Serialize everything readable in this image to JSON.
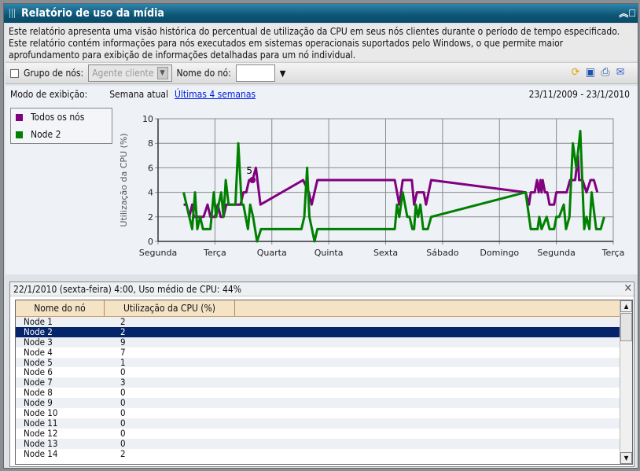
{
  "title": "Relatório de uso da mídia",
  "description": "Este relatório apresenta uma visão histórica do percentual de utilização da CPU em seus nós clientes durante o período de tempo especificado. Este relatório contém informações para nós executados em sistemas operacionais suportados pelo Windows, o que permite maior aprofundamento para exibição de informações detalhadas para um nó individual.",
  "toolbar": {
    "node_group_label": "Grupo de nós:",
    "node_group_value": "Agente cliente",
    "node_name_label": "Nome do nó:",
    "node_name_value": "",
    "icons": [
      "refresh-icon",
      "save-icon",
      "print-icon",
      "email-icon"
    ]
  },
  "mode": {
    "label": "Modo de exibição:",
    "current_week": "Semana atual",
    "last4": "Últimas 4 semanas",
    "date_range": "23/11/2009 - 23/1/2010"
  },
  "legend": [
    {
      "name": "Todos os nós",
      "color": "#800080"
    },
    {
      "name": "Node 2",
      "color": "#008000"
    }
  ],
  "chart_data": {
    "type": "line",
    "ylabel": "Utilização da CPU (%)",
    "ylim": [
      0,
      10
    ],
    "yticks": [
      "0",
      "2",
      "4",
      "6",
      "8",
      "10"
    ],
    "xticks": [
      "Segunda",
      "Terça",
      "Quarta",
      "Quinta",
      "Sexta",
      "Sábado",
      "Domingo",
      "Segunda",
      "Terça"
    ],
    "grid": true,
    "annotation": {
      "series": "Todos os nós",
      "x": 1.66,
      "y": 5,
      "label": "5"
    },
    "series": [
      {
        "name": "Todos os nós",
        "color": "#800080",
        "points": [
          [
            0.45,
            3
          ],
          [
            0.5,
            3
          ],
          [
            0.55,
            2
          ],
          [
            0.6,
            3
          ],
          [
            0.63,
            2
          ],
          [
            0.8,
            2
          ],
          [
            0.87,
            3
          ],
          [
            0.92,
            2
          ],
          [
            1.0,
            2
          ],
          [
            1.05,
            3
          ],
          [
            1.1,
            2
          ],
          [
            1.15,
            2
          ],
          [
            1.2,
            3
          ],
          [
            1.45,
            3
          ],
          [
            1.5,
            4
          ],
          [
            1.55,
            4
          ],
          [
            1.6,
            5
          ],
          [
            1.66,
            5
          ],
          [
            1.72,
            6
          ],
          [
            1.8,
            3
          ],
          [
            2.55,
            5
          ],
          [
            2.65,
            4
          ],
          [
            2.7,
            3
          ],
          [
            2.8,
            5
          ],
          [
            4.16,
            5
          ],
          [
            4.24,
            3
          ],
          [
            4.3,
            5
          ],
          [
            4.46,
            5
          ],
          [
            4.5,
            3
          ],
          [
            4.55,
            4
          ],
          [
            4.67,
            4
          ],
          [
            4.71,
            3
          ],
          [
            4.8,
            5
          ],
          [
            6.46,
            4
          ],
          [
            6.52,
            3
          ],
          [
            6.55,
            4
          ],
          [
            6.62,
            4
          ],
          [
            6.66,
            5
          ],
          [
            6.69,
            4
          ],
          [
            6.72,
            5
          ],
          [
            6.74,
            4
          ],
          [
            6.76,
            5
          ],
          [
            6.8,
            4
          ],
          [
            6.84,
            4
          ],
          [
            6.88,
            3
          ],
          [
            6.96,
            3
          ],
          [
            7.0,
            4
          ],
          [
            7.18,
            4
          ],
          [
            7.24,
            5
          ],
          [
            7.33,
            5
          ],
          [
            7.38,
            7
          ],
          [
            7.4,
            5
          ],
          [
            7.46,
            5
          ],
          [
            7.53,
            4
          ],
          [
            7.6,
            5
          ],
          [
            7.66,
            5
          ],
          [
            7.72,
            4
          ]
        ]
      },
      {
        "name": "Node 2",
        "color": "#008000",
        "points": [
          [
            0.45,
            4
          ],
          [
            0.5,
            3
          ],
          [
            0.6,
            1
          ],
          [
            0.65,
            4
          ],
          [
            0.69,
            1
          ],
          [
            0.74,
            2
          ],
          [
            0.79,
            1
          ],
          [
            0.92,
            1
          ],
          [
            0.98,
            4
          ],
          [
            1.02,
            2
          ],
          [
            1.11,
            4
          ],
          [
            1.15,
            2
          ],
          [
            1.19,
            5
          ],
          [
            1.24,
            3
          ],
          [
            1.36,
            3
          ],
          [
            1.41,
            8
          ],
          [
            1.47,
            3
          ],
          [
            1.5,
            3
          ],
          [
            1.58,
            1
          ],
          [
            1.62,
            3
          ],
          [
            1.67,
            2
          ],
          [
            1.74,
            0
          ],
          [
            1.81,
            1
          ],
          [
            2.52,
            1
          ],
          [
            2.57,
            2
          ],
          [
            2.62,
            6
          ],
          [
            2.66,
            2
          ],
          [
            2.75,
            0
          ],
          [
            2.8,
            1
          ],
          [
            4.16,
            1
          ],
          [
            4.2,
            3
          ],
          [
            4.24,
            2
          ],
          [
            4.3,
            4
          ],
          [
            4.38,
            2
          ],
          [
            4.42,
            2
          ],
          [
            4.47,
            1
          ],
          [
            4.5,
            1
          ],
          [
            4.53,
            3
          ],
          [
            4.57,
            2
          ],
          [
            4.61,
            3
          ],
          [
            4.66,
            1
          ],
          [
            4.74,
            1
          ],
          [
            4.8,
            2
          ],
          [
            6.46,
            4
          ],
          [
            6.55,
            1
          ],
          [
            6.67,
            1
          ],
          [
            6.7,
            2
          ],
          [
            6.74,
            1
          ],
          [
            6.83,
            2
          ],
          [
            6.88,
            1
          ],
          [
            6.96,
            1
          ],
          [
            7.0,
            2
          ],
          [
            7.05,
            2
          ],
          [
            7.13,
            3
          ],
          [
            7.17,
            1
          ],
          [
            7.23,
            2
          ],
          [
            7.29,
            8
          ],
          [
            7.35,
            6
          ],
          [
            7.42,
            9
          ],
          [
            7.49,
            1
          ],
          [
            7.53,
            2
          ],
          [
            7.58,
            1
          ],
          [
            7.62,
            4
          ],
          [
            7.7,
            1
          ],
          [
            7.78,
            1
          ],
          [
            7.84,
            2
          ]
        ]
      }
    ]
  },
  "detail": {
    "header": "22/1/2010 (sexta-feira) 4:00, Uso médio de CPU: 44%",
    "columns": [
      "Nome do nó",
      "Utilização da CPU (%)"
    ],
    "rows": [
      [
        "Node 1",
        "2"
      ],
      [
        "Node 2",
        "2"
      ],
      [
        "Node 3",
        "9"
      ],
      [
        "Node 4",
        "7"
      ],
      [
        "Node 5",
        "1"
      ],
      [
        "Node 6",
        "0"
      ],
      [
        "Node 7",
        "3"
      ],
      [
        "Node 8",
        "0"
      ],
      [
        "Node 9",
        "0"
      ],
      [
        "Node 10",
        "0"
      ],
      [
        "Node 11",
        "0"
      ],
      [
        "Node 12",
        "0"
      ],
      [
        "Node 13",
        "0"
      ],
      [
        "Node 14",
        "2"
      ]
    ],
    "selected_row": 1
  }
}
